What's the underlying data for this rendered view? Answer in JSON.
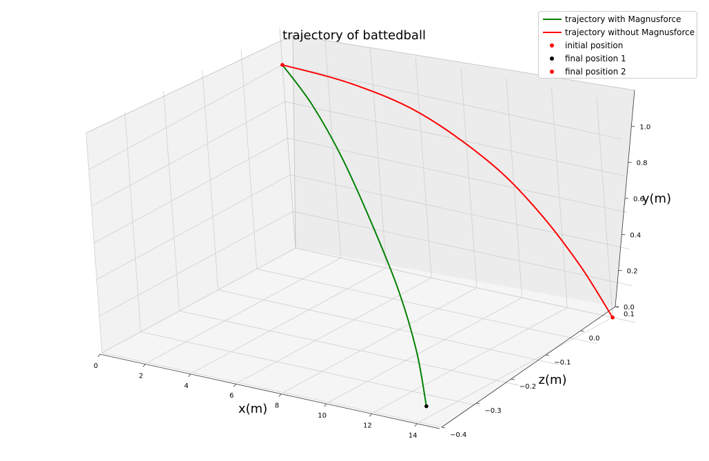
{
  "chart_data": {
    "type": "line3d",
    "title": "trajectory of battedball",
    "xlabel": "x(m)",
    "ylabel": "z(m)",
    "zlabel": "y(m)",
    "x_ticks": [
      "0",
      "2",
      "4",
      "6",
      "8",
      "10",
      "12",
      "14"
    ],
    "y_ticks": [
      "−0.4",
      "−0.3",
      "−0.2",
      "−0.1",
      "0.0",
      "0.1"
    ],
    "z_ticks": [
      "0.0",
      "0.2",
      "0.4",
      "0.6",
      "0.8",
      "1.0"
    ],
    "xlim": [
      0,
      15
    ],
    "ylim": [
      -0.4,
      0.1
    ],
    "zlim": [
      0,
      1.2
    ],
    "grid": true,
    "legend_position": "top-right",
    "series": [
      {
        "name": "trajectory with Magnusforce",
        "kind": "line",
        "color": "#008000",
        "points": [
          [
            0,
            0.1,
            1.0
          ],
          [
            3.0,
            0.0,
            0.98
          ],
          [
            6.0,
            -0.1,
            0.88
          ],
          [
            9.0,
            -0.2,
            0.69
          ],
          [
            11.0,
            -0.26,
            0.47
          ],
          [
            12.5,
            -0.31,
            0.24
          ],
          [
            13.3,
            -0.34,
            0.0
          ]
        ]
      },
      {
        "name": "trajectory without Magnusforce",
        "kind": "line",
        "color": "#ff0000",
        "points": [
          [
            0,
            0.1,
            1.0
          ],
          [
            3.0,
            0.1,
            0.98
          ],
          [
            6.0,
            0.1,
            0.9
          ],
          [
            9.0,
            0.1,
            0.71
          ],
          [
            11.0,
            0.1,
            0.5
          ],
          [
            12.7,
            0.1,
            0.25
          ],
          [
            14.0,
            0.1,
            0.0
          ]
        ]
      },
      {
        "name": "initial position",
        "kind": "scatter",
        "color": "#ff0000",
        "points": [
          [
            0,
            0.1,
            1.0
          ]
        ]
      },
      {
        "name": "final position 1",
        "kind": "scatter",
        "color": "#000000",
        "points": [
          [
            13.3,
            -0.34,
            0.0
          ]
        ]
      },
      {
        "name": "final position 2",
        "kind": "scatter",
        "color": "#ff0000",
        "points": [
          [
            14.0,
            0.1,
            0.0
          ]
        ]
      }
    ]
  }
}
